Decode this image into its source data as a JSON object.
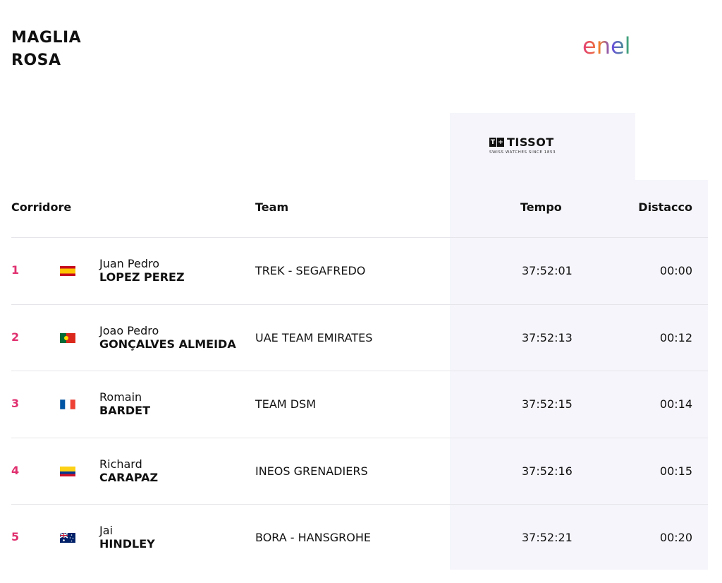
{
  "title": {
    "line1": "MAGLIA",
    "line2": "ROSA"
  },
  "sponsor": {
    "enel_text": "enel",
    "tissot_text": "TISSOT",
    "tissot_tagline": "SWISS WATCHES SINCE 1853"
  },
  "table": {
    "headers": {
      "rider": "Corridore",
      "team": "Team",
      "time": "Tempo",
      "gap": "Distacco"
    },
    "rows": [
      {
        "rank": "1",
        "flag": "spain-flag",
        "first": "Juan Pedro",
        "last": "LOPEZ PEREZ",
        "team": "TREK - SEGAFREDO",
        "time": "37:52:01",
        "gap": "00:00"
      },
      {
        "rank": "2",
        "flag": "portugal-flag",
        "first": "Joao Pedro",
        "last": "GONÇALVES ALMEIDA",
        "team": "UAE TEAM EMIRATES",
        "time": "37:52:13",
        "gap": "00:12"
      },
      {
        "rank": "3",
        "flag": "france-flag",
        "first": "Romain",
        "last": "BARDET",
        "team": "TEAM DSM",
        "time": "37:52:15",
        "gap": "00:14"
      },
      {
        "rank": "4",
        "flag": "colombia-flag",
        "first": "Richard",
        "last": "CARAPAZ",
        "team": "INEOS GRENADIERS",
        "time": "37:52:16",
        "gap": "00:15"
      },
      {
        "rank": "5",
        "flag": "australia-flag",
        "first": "Jai",
        "last": "HINDLEY",
        "team": "BORA - HANSGROHE",
        "time": "37:52:21",
        "gap": "00:20"
      }
    ]
  },
  "colors": {
    "rank": "#e0306f",
    "highlight_bg": "#f5f5fb"
  }
}
